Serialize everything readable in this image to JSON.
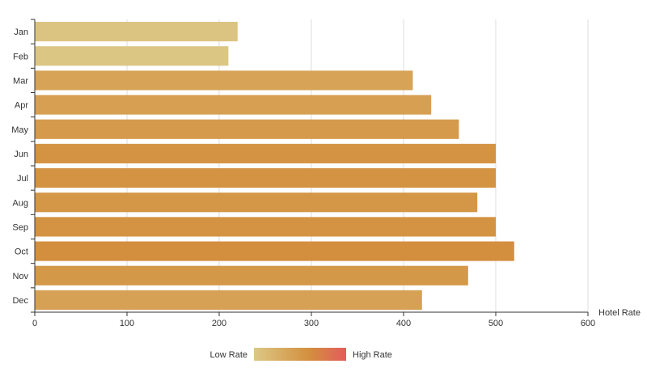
{
  "chart_data": {
    "type": "bar",
    "orientation": "horizontal",
    "categories": [
      "Jan",
      "Feb",
      "Mar",
      "Apr",
      "May",
      "Jun",
      "Jul",
      "Aug",
      "Sep",
      "Oct",
      "Nov",
      "Dec"
    ],
    "values": [
      220,
      210,
      410,
      430,
      460,
      500,
      500,
      480,
      500,
      520,
      470,
      420
    ],
    "xlabel": "Hotel Rate",
    "ylabel": "",
    "xlim": [
      0,
      600
    ],
    "xticks": [
      0,
      100,
      200,
      300,
      400,
      500,
      600
    ],
    "grid": "vertical",
    "legend": {
      "type": "visual-map",
      "placement": "bottom-center",
      "low_label": "Low Rate",
      "high_label": "High Rate",
      "colors": [
        "#dcc886",
        "#d38f3e",
        "#e35c5c"
      ]
    }
  }
}
